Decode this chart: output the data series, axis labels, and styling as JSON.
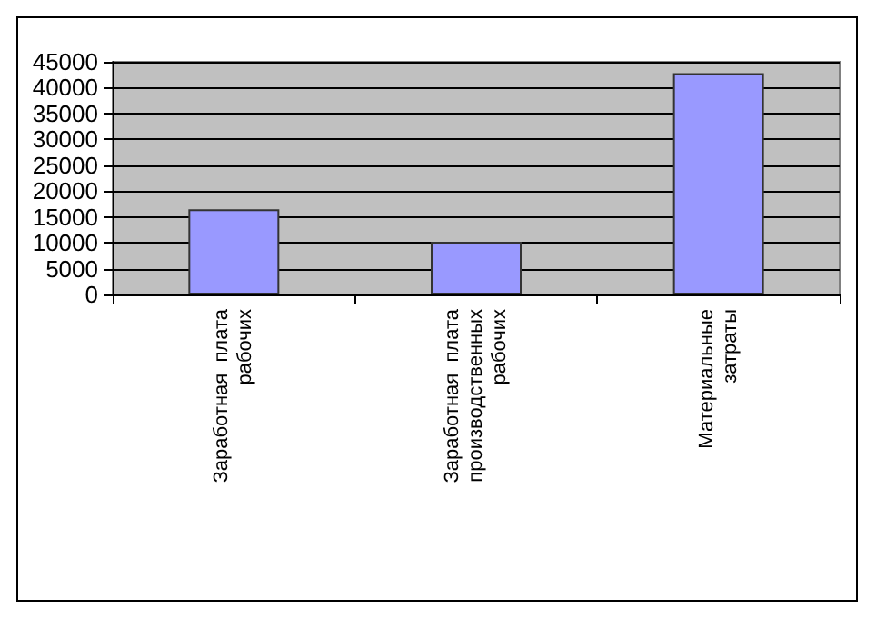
{
  "chart_data": {
    "type": "bar",
    "categories": [
      "Заработная  плата рабочих",
      "Заработная  плата производственных рабочих",
      "Материальные затраты"
    ],
    "values": [
      16500,
      10200,
      42800
    ],
    "color": "#9999ff",
    "ylim": [
      0,
      45000
    ],
    "yticks": [
      0,
      5000,
      10000,
      15000,
      20000,
      25000,
      30000,
      35000,
      40000,
      45000
    ],
    "grid": "y"
  }
}
